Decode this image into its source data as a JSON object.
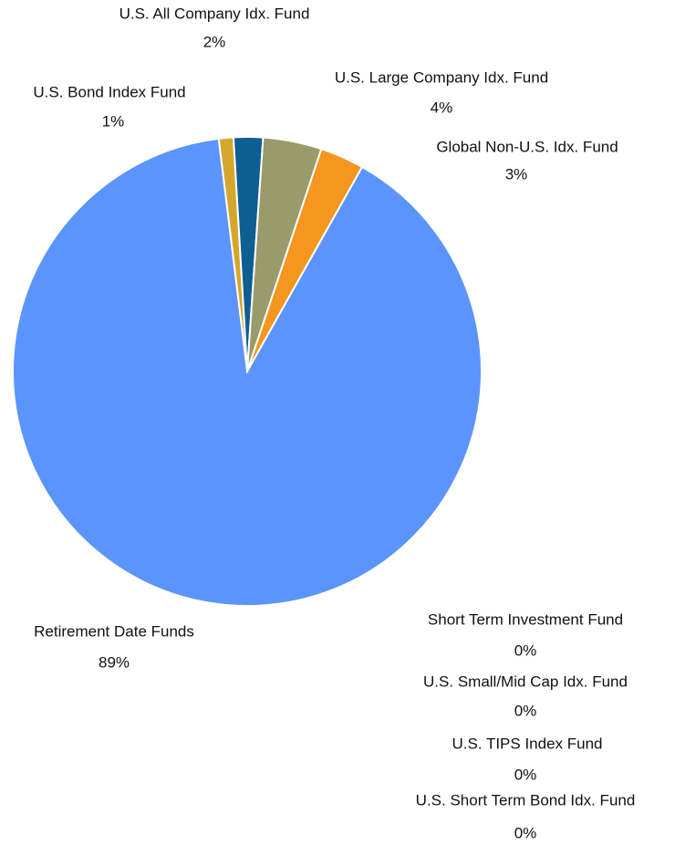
{
  "chart_data": {
    "type": "pie",
    "categories": [
      "U.S. Bond Index Fund",
      "U.S. All Company Idx. Fund",
      "U.S. Large Company Idx. Fund",
      "Global Non-U.S. Idx. Fund",
      "Short Term Investment Fund",
      "U.S. Small/Mid Cap Idx. Fund",
      "U.S. TIPS Index Fund",
      "U.S. Short Term Bond Idx. Fund",
      "Retirement Date Funds"
    ],
    "values": [
      1,
      2,
      4,
      3,
      0,
      0,
      0,
      0,
      89
    ],
    "value_labels": [
      "1%",
      "2%",
      "4%",
      "3%",
      "0%",
      "0%",
      "0%",
      "0%",
      "89%"
    ],
    "colors": [
      "#d4a72c",
      "#0d5f91",
      "#9a9a6a",
      "#f5961e",
      "#ffffff",
      "#ffffff",
      "#ffffff",
      "#ffffff",
      "#5b94fb"
    ]
  }
}
